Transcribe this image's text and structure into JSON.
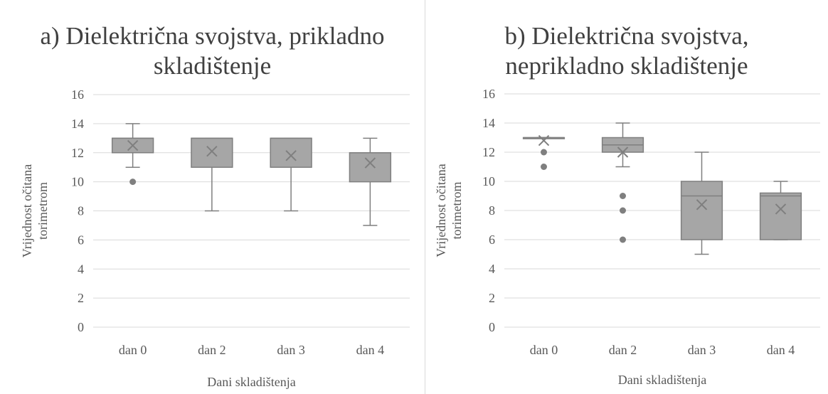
{
  "chart_data": [
    {
      "type": "box",
      "title_lines": [
        "a) Dielektrična svojstva, prikladno",
        "skladištenje"
      ],
      "xlabel": "Dani skladištenja",
      "ylabel_lines": [
        "Vrijednost očitana",
        "torimetrom"
      ],
      "ylim": [
        0,
        16
      ],
      "yticks": [
        "0",
        "2",
        "4",
        "6",
        "8",
        "10",
        "12",
        "14",
        "16"
      ],
      "grid": true,
      "categories": [
        "dan 0",
        "dan 2",
        "dan 3",
        "dan 4"
      ],
      "boxes": [
        {
          "whisker_low": 11,
          "q1": 12,
          "median": 13,
          "q3": 13,
          "whisker_high": 14,
          "mean": 12.5,
          "outliers": [
            10
          ]
        },
        {
          "whisker_low": 8,
          "q1": 11,
          "median": 13,
          "q3": 13,
          "whisker_high": 13,
          "mean": 12.1,
          "outliers": []
        },
        {
          "whisker_low": 8,
          "q1": 11,
          "median": 13,
          "q3": 13,
          "whisker_high": 13,
          "mean": 11.8,
          "outliers": []
        },
        {
          "whisker_low": 7,
          "q1": 10,
          "median": 12,
          "q3": 12,
          "whisker_high": 13,
          "mean": 11.3,
          "outliers": []
        }
      ]
    },
    {
      "type": "box",
      "title_lines": [
        "b) Dielektrična svojstva,",
        "neprikladno skladištenje"
      ],
      "xlabel": "Dani skladištenja",
      "ylabel_lines": [
        "Vrijednost očitana",
        "torimetrom"
      ],
      "ylim": [
        0,
        16
      ],
      "yticks": [
        "0",
        "2",
        "4",
        "6",
        "8",
        "10",
        "12",
        "14",
        "16"
      ],
      "grid": true,
      "categories": [
        "dan 0",
        "dan 2",
        "dan 3",
        "dan 4"
      ],
      "boxes": [
        {
          "whisker_low": 13,
          "q1": 13,
          "median": 13,
          "q3": 13,
          "whisker_high": 13,
          "mean": 12.8,
          "outliers": [
            12,
            11
          ]
        },
        {
          "whisker_low": 11,
          "q1": 12,
          "median": 12.5,
          "q3": 13,
          "whisker_high": 14,
          "mean": 12,
          "outliers": [
            9,
            8,
            6
          ]
        },
        {
          "whisker_low": 5,
          "q1": 6,
          "median": 9,
          "q3": 10,
          "whisker_high": 12,
          "mean": 8.4,
          "outliers": []
        },
        {
          "whisker_low": 6,
          "q1": 6,
          "median": 9,
          "q3": 9.2,
          "whisker_high": 10,
          "mean": 8.1,
          "outliers": []
        }
      ]
    }
  ],
  "colors": {
    "box_fill": "#a6a6a6",
    "box_stroke": "#7f7f7f",
    "grid": "#d9d9d9",
    "text": "#595959",
    "title": "#404040"
  }
}
